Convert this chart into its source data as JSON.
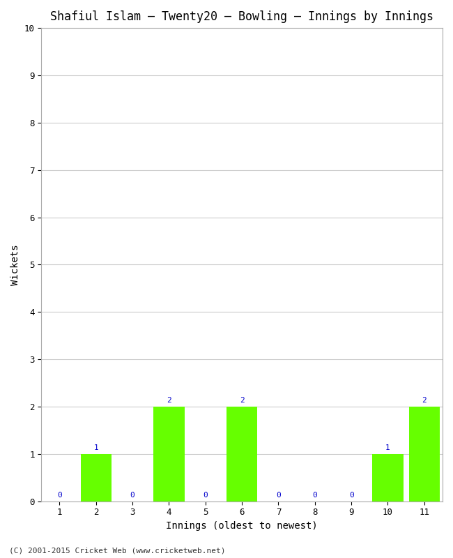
{
  "title": "Shafiul Islam – Twenty20 – Bowling – Innings by Innings",
  "xlabel": "Innings (oldest to newest)",
  "ylabel": "Wickets",
  "categories": [
    1,
    2,
    3,
    4,
    5,
    6,
    7,
    8,
    9,
    10,
    11
  ],
  "values": [
    0,
    1,
    0,
    2,
    0,
    2,
    0,
    0,
    0,
    1,
    2
  ],
  "bar_color": "#66ff00",
  "label_color": "#0000cc",
  "ylim": [
    0,
    10
  ],
  "yticks": [
    0,
    1,
    2,
    3,
    4,
    5,
    6,
    7,
    8,
    9,
    10
  ],
  "bg_color": "#ffffff",
  "plot_bg_color": "#ffffff",
  "grid_color": "#cccccc",
  "title_fontsize": 12,
  "axis_label_fontsize": 10,
  "tick_fontsize": 9,
  "bar_label_fontsize": 8,
  "footer": "(C) 2001-2015 Cricket Web (www.cricketweb.net)"
}
